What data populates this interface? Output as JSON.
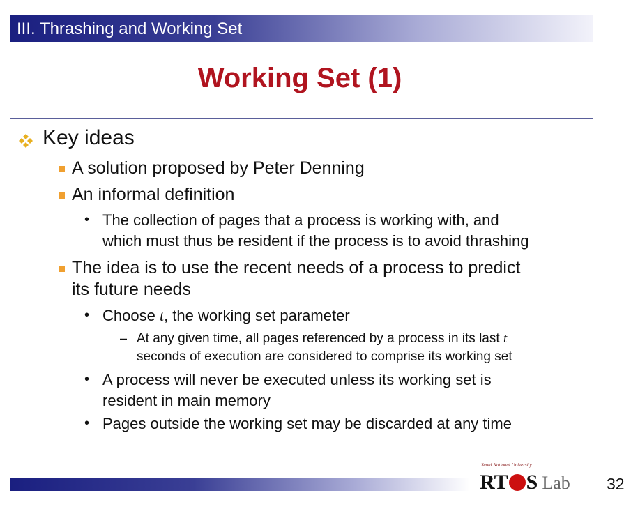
{
  "header": {
    "section_title": "III. Thrashing and Working Set"
  },
  "slide": {
    "title": "Working Set (1)"
  },
  "content": {
    "key_ideas": "Key ideas",
    "b1": "A solution proposed by Peter Denning",
    "b2": "An informal definition",
    "b2_sub1_line1": "The collection of pages that a process is working with, and",
    "b2_sub1_line2": "which must thus be resident if the process is to avoid thrashing",
    "b3_line1": "The idea is to use the recent needs of a process to predict",
    "b3_line2": "its future needs",
    "b3_sub1_pre": "Choose ",
    "b3_sub1_var": "t",
    "b3_sub1_post": ", the working set parameter",
    "b3_sub1_dash_line1_pre": "At any given time, all pages referenced by a process in its last ",
    "b3_sub1_dash_line1_var": "t",
    "b3_sub1_dash_line2": "seconds of execution are considered to comprise its working set",
    "b3_sub2_line1": "A process will never be executed unless its working set is",
    "b3_sub2_line2": "resident in main memory",
    "b3_sub3": "Pages outside the working set may be discarded at any time"
  },
  "footer": {
    "logo_university": "Seoul National University",
    "logo_rt": "RT",
    "logo_s": "S",
    "logo_lab": "Lab",
    "page_number": "32"
  },
  "colors": {
    "header_bar": "#1a1f80",
    "title": "#b0141f",
    "bullet_l1": "#e8b020",
    "bullet_l2": "#f0a030",
    "logo_o": "#cc1010"
  },
  "icons": {
    "level1_bullet": "four-diamond-bullet-icon",
    "level2_bullet": "square-bullet-icon"
  }
}
